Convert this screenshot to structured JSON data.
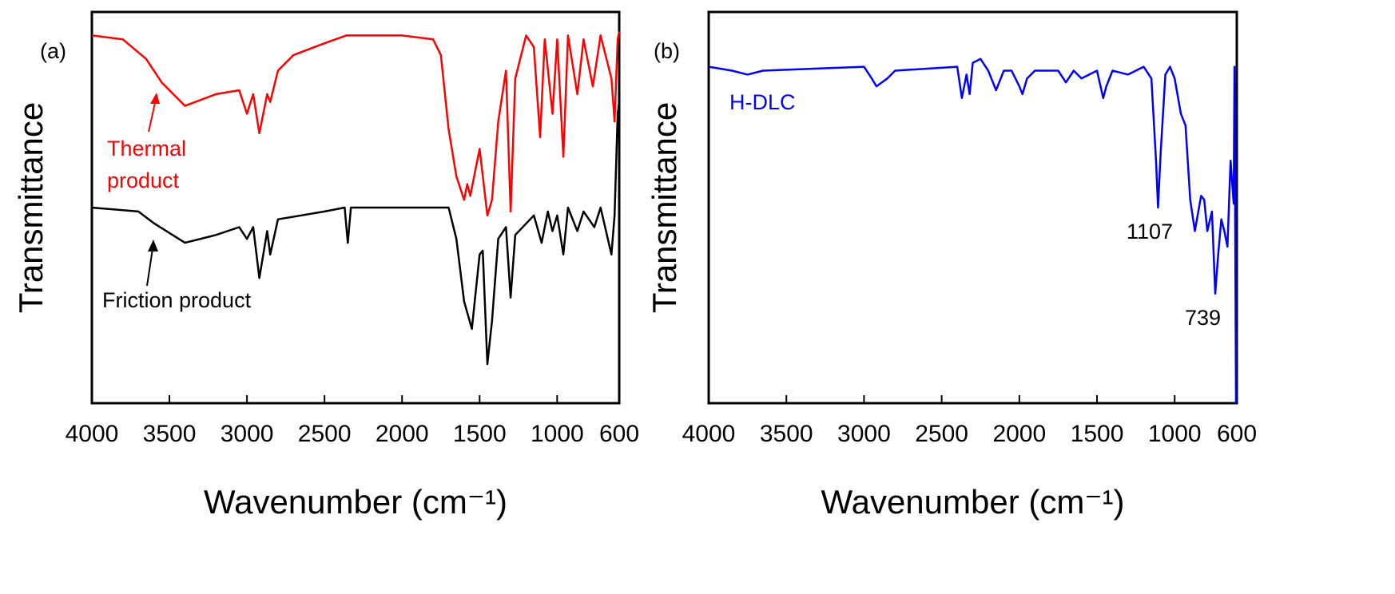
{
  "chart_data": [
    {
      "type": "line",
      "x_label": "Wavenumber (cm⁻¹)",
      "y_label": "Transmittance",
      "annotations": [
        "(a)",
        "Thermal",
        "product",
        "Friction product"
      ],
      "xlim": [
        4000,
        600
      ],
      "ylim": [
        0,
        100
      ],
      "xticks": [
        4000,
        3500,
        3000,
        2500,
        2000,
        1500,
        1000,
        600
      ],
      "series": [
        {
          "name": "Thermal product",
          "color": "#ff0000",
          "x": [
            4000,
            3800,
            3650,
            3550,
            3400,
            3200,
            3050,
            3000,
            2960,
            2920,
            2870,
            2850,
            2800,
            2700,
            2500,
            2360,
            2000,
            1800,
            1750,
            1700,
            1650,
            1600,
            1580,
            1560,
            1500,
            1450,
            1420,
            1380,
            1330,
            1300,
            1270,
            1200,
            1150,
            1110,
            1080,
            1030,
            1000,
            960,
            930,
            870,
            830,
            770,
            720,
            650,
            630,
            610,
            600
          ],
          "values": [
            94,
            93,
            88,
            82,
            76,
            79,
            80,
            74,
            79,
            69,
            79,
            77,
            85,
            89,
            92,
            94,
            94,
            93,
            89,
            70,
            58,
            52,
            56,
            53,
            65,
            48,
            52,
            72,
            85,
            49,
            83,
            94,
            91,
            68,
            93,
            74,
            93,
            63,
            94,
            79,
            93,
            81,
            94,
            83,
            72,
            93,
            95
          ]
        },
        {
          "name": "Friction product",
          "color": "#000000",
          "x": [
            4000,
            3700,
            3600,
            3400,
            3200,
            3050,
            3000,
            2960,
            2920,
            2870,
            2850,
            2800,
            2500,
            2370,
            2350,
            2330,
            1800,
            1700,
            1650,
            1600,
            1550,
            1500,
            1480,
            1450,
            1420,
            1380,
            1330,
            1300,
            1270,
            1150,
            1100,
            1060,
            1030,
            1000,
            960,
            930,
            870,
            830,
            760,
            720,
            650,
            630,
            610,
            600
          ],
          "values": [
            50,
            49,
            46,
            41,
            43,
            45,
            42,
            45,
            32,
            44,
            38,
            47,
            49,
            50,
            41,
            50,
            50,
            50,
            42,
            26,
            19,
            38,
            39,
            10,
            21,
            42,
            45,
            27,
            43,
            48,
            41,
            49,
            44,
            48,
            38,
            50,
            44,
            49,
            45,
            50,
            38,
            48,
            74,
            77
          ]
        }
      ]
    },
    {
      "type": "line",
      "x_label": "Wavenumber (cm⁻¹)",
      "y_label": "Transmittance",
      "annotations": [
        "(b)",
        "H-DLC",
        "1107",
        "739"
      ],
      "xlim": [
        4000,
        600
      ],
      "ylim": [
        0,
        100
      ],
      "xticks": [
        4000,
        3500,
        3000,
        2500,
        2000,
        1500,
        1000,
        600
      ],
      "series": [
        {
          "name": "H-DLC",
          "color": "#0000ff",
          "x": [
            4000,
            3850,
            3750,
            3650,
            3000,
            2950,
            2920,
            2850,
            2800,
            2400,
            2370,
            2340,
            2320,
            2300,
            2250,
            2200,
            2150,
            2100,
            2050,
            2000,
            1980,
            1950,
            1900,
            1750,
            1700,
            1650,
            1600,
            1550,
            1500,
            1460,
            1440,
            1400,
            1300,
            1200,
            1150,
            1120,
            1107,
            1090,
            1060,
            1030,
            1000,
            960,
            930,
            900,
            870,
            830,
            810,
            790,
            760,
            739,
            720,
            700,
            680,
            660,
            640,
            620,
            615,
            605
          ],
          "values": [
            86,
            85,
            84,
            85,
            86,
            83,
            81,
            83,
            85,
            86,
            78,
            84,
            79,
            87,
            88,
            85,
            80,
            85,
            85,
            81,
            79,
            83,
            85,
            85,
            82,
            85,
            83,
            84,
            85,
            78,
            81,
            85,
            84,
            86,
            83,
            62,
            50,
            64,
            84,
            86,
            83,
            74,
            71,
            52,
            44,
            53,
            52,
            44,
            49,
            28,
            38,
            47,
            44,
            40,
            62,
            51,
            86,
            0
          ]
        }
      ]
    }
  ]
}
